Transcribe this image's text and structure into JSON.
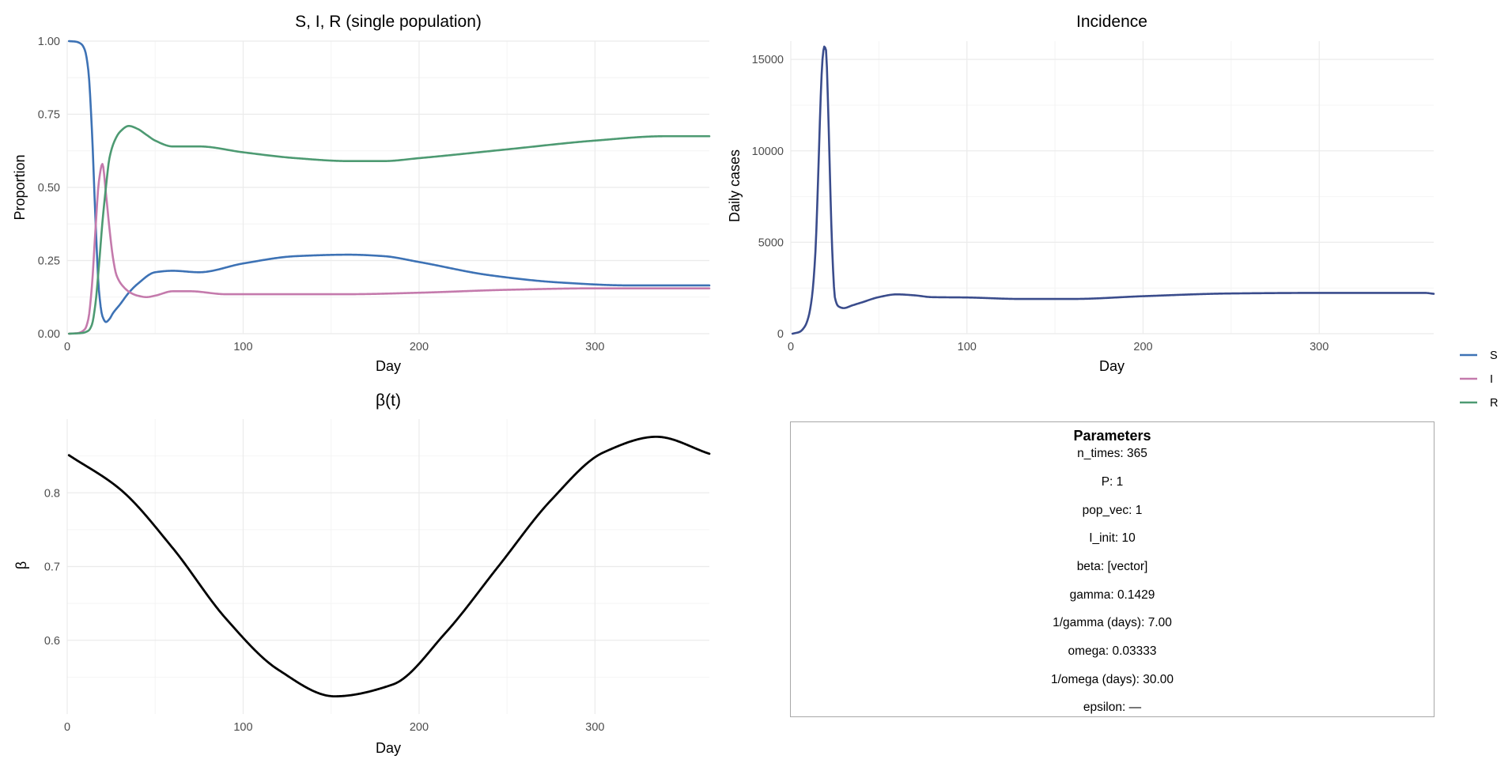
{
  "colors": {
    "S": "#3d72b5",
    "I": "#c47aac",
    "R": "#4d9a72",
    "incidence": "#3a4c8c",
    "beta": "#000000"
  },
  "legend": [
    {
      "label": "S",
      "color": "#3d72b5"
    },
    {
      "label": "I",
      "color": "#c47aac"
    },
    {
      "label": "R",
      "color": "#4d9a72"
    }
  ],
  "chart_data": [
    {
      "type": "line",
      "title": "S, I, R (single population)",
      "xlabel": "Day",
      "ylabel": "Proportion",
      "xlim": [
        0,
        365
      ],
      "ylim": [
        0,
        1
      ],
      "x_ticks": [
        0,
        100,
        200,
        300
      ],
      "y_ticks": [
        0,
        0.25,
        0.5,
        0.75,
        1.0
      ],
      "y_tick_labels": [
        "0.00",
        "0.25",
        "0.50",
        "0.75",
        "1.00"
      ],
      "grid": true,
      "legend_position": "right",
      "series": [
        {
          "name": "S",
          "x": [
            1,
            5,
            8,
            10,
            12,
            14,
            16,
            18,
            20,
            22,
            24,
            26,
            30,
            35,
            40,
            50,
            60,
            75,
            100,
            130,
            160,
            180,
            200,
            240,
            280,
            320,
            365
          ],
          "y": [
            1.0,
            0.998,
            0.99,
            0.97,
            0.9,
            0.7,
            0.4,
            0.15,
            0.06,
            0.04,
            0.05,
            0.07,
            0.1,
            0.14,
            0.17,
            0.21,
            0.215,
            0.21,
            0.24,
            0.265,
            0.27,
            0.265,
            0.245,
            0.2,
            0.175,
            0.165,
            0.165
          ]
        },
        {
          "name": "I",
          "x": [
            1,
            6,
            10,
            12,
            14,
            16,
            18,
            20,
            22,
            24,
            26,
            28,
            32,
            36,
            40,
            45,
            50,
            60,
            70,
            90,
            120,
            160,
            200,
            250,
            300,
            365
          ],
          "y": [
            0.0,
            0.002,
            0.015,
            0.05,
            0.16,
            0.35,
            0.52,
            0.58,
            0.48,
            0.36,
            0.26,
            0.2,
            0.16,
            0.14,
            0.13,
            0.125,
            0.13,
            0.145,
            0.145,
            0.135,
            0.135,
            0.135,
            0.14,
            0.15,
            0.155,
            0.155
          ]
        },
        {
          "name": "R",
          "x": [
            1,
            8,
            12,
            14,
            16,
            18,
            20,
            22,
            24,
            27,
            30,
            35,
            40,
            45,
            50,
            60,
            75,
            100,
            130,
            160,
            180,
            200,
            250,
            300,
            340,
            365
          ],
          "y": [
            0.0,
            0.002,
            0.01,
            0.03,
            0.1,
            0.23,
            0.38,
            0.5,
            0.6,
            0.66,
            0.69,
            0.71,
            0.7,
            0.68,
            0.66,
            0.64,
            0.64,
            0.62,
            0.6,
            0.59,
            0.59,
            0.6,
            0.63,
            0.66,
            0.675,
            0.675
          ]
        }
      ]
    },
    {
      "type": "line",
      "title": "Incidence",
      "xlabel": "Day",
      "ylabel": "Daily cases",
      "xlim": [
        0,
        365
      ],
      "ylim": [
        0,
        16000
      ],
      "x_ticks": [
        0,
        100,
        200,
        300
      ],
      "y_ticks": [
        0,
        5000,
        10000,
        15000
      ],
      "grid": true,
      "series": [
        {
          "x": [
            1,
            5,
            8,
            10,
            12,
            14,
            15,
            16,
            17,
            18,
            19,
            20,
            21,
            22,
            23,
            24,
            25,
            27,
            30,
            35,
            40,
            50,
            60,
            70,
            80,
            100,
            130,
            160,
            200,
            250,
            300,
            330,
            360,
            365
          ],
          "y": [
            0,
            100,
            400,
            900,
            2000,
            4500,
            7000,
            10000,
            13000,
            15000,
            15700,
            15500,
            13000,
            9500,
            6000,
            3500,
            2000,
            1500,
            1400,
            1550,
            1700,
            2000,
            2150,
            2100,
            2000,
            1980,
            1900,
            1900,
            2050,
            2200,
            2230,
            2230,
            2230,
            2180
          ]
        }
      ]
    },
    {
      "type": "line",
      "title": "β(t)",
      "xlabel": "Day",
      "ylabel": "β",
      "xlim": [
        0,
        365
      ],
      "ylim": [
        0.5,
        0.9
      ],
      "x_ticks": [
        0,
        100,
        200,
        300
      ],
      "y_ticks": [
        0.6,
        0.7,
        0.8
      ],
      "grid": true,
      "series": [
        {
          "x": [
            1,
            30,
            60,
            90,
            120,
            152,
            185,
            215,
            245,
            275,
            305,
            335,
            365
          ],
          "y": [
            0.851,
            0.805,
            0.725,
            0.63,
            0.56,
            0.524,
            0.54,
            0.61,
            0.7,
            0.79,
            0.855,
            0.876,
            0.853
          ]
        }
      ]
    }
  ],
  "params": {
    "title": "Parameters",
    "lines": [
      "n_times: 365",
      "P: 1",
      "pop_vec: 1",
      "I_init: 10",
      "beta: [vector]",
      "gamma: 0.1429",
      "1/gamma (days): 7.00",
      "omega: 0.03333",
      "1/omega (days): 30.00",
      "epsilon: —"
    ]
  }
}
